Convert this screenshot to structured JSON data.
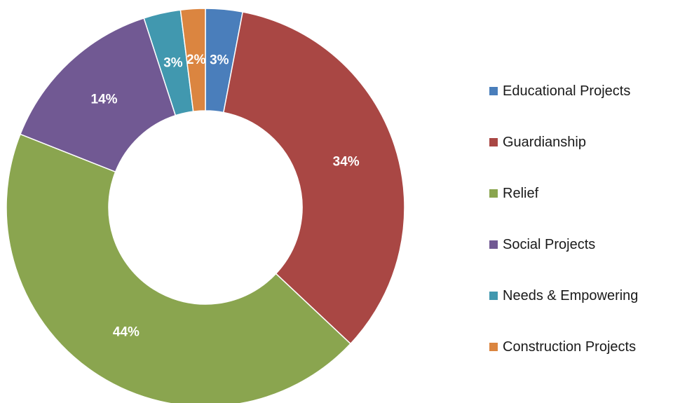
{
  "chart_data": {
    "type": "pie",
    "style": "donut",
    "legend_position": "right",
    "categories": [
      "Educational Projects",
      "Guardianship",
      "Relief",
      "Social Projects",
      "Needs & Empowering",
      "Construction Projects"
    ],
    "values": [
      3,
      34,
      44,
      14,
      3,
      2
    ],
    "value_labels": [
      "3%",
      "34%",
      "44%",
      "14%",
      "3%",
      "2%"
    ],
    "colors": [
      "#4a7ebb",
      "#a94744",
      "#8aa54f",
      "#715993",
      "#4198af",
      "#db8540"
    ]
  }
}
